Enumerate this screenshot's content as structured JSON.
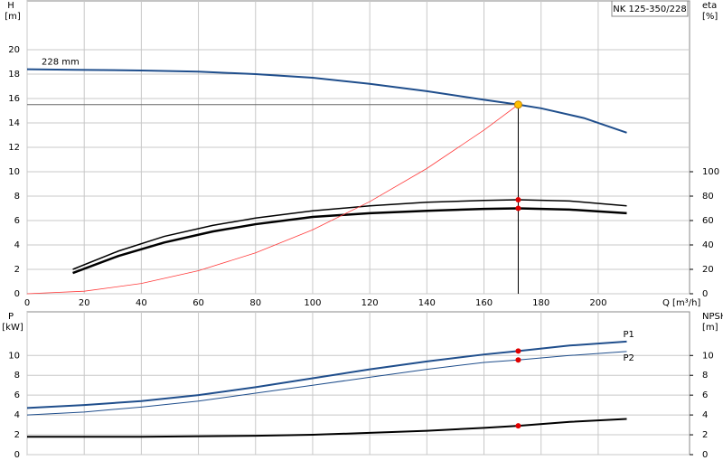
{
  "chart_data": [
    {
      "type": "line",
      "title": "NK 125-350/228",
      "ylabel": [
        "H",
        "[m]"
      ],
      "y2label": [
        "eta",
        "[%]"
      ],
      "xlabel": "Q [m³/h]",
      "xlim": [
        0,
        232
      ],
      "xticks": [
        0,
        20,
        40,
        60,
        80,
        100,
        120,
        140,
        160,
        180,
        200
      ],
      "ylim": [
        0,
        24
      ],
      "yticks": [
        0,
        2,
        4,
        6,
        8,
        10,
        12,
        14,
        16,
        18,
        20
      ],
      "y2lim": [
        0,
        240
      ],
      "y2ticks": [
        0,
        20,
        40,
        60,
        80,
        100
      ],
      "grid": true,
      "xtick_labels": true,
      "series": [
        {
          "name": "228 mm",
          "color": "#1f4e8c",
          "width": 2,
          "label_at": "start",
          "x": [
            0,
            17,
            40,
            60,
            80,
            100,
            120,
            140,
            160,
            172,
            180,
            195,
            210
          ],
          "values": [
            18.4,
            18.35,
            18.3,
            18.2,
            18.0,
            17.7,
            17.2,
            16.6,
            15.9,
            15.5,
            15.2,
            14.4,
            13.2
          ]
        },
        {
          "color": "#000000",
          "width": 1.5,
          "axis": "y2",
          "x": [
            16,
            32,
            48,
            65,
            80,
            100,
            120,
            140,
            160,
            172,
            190,
            210
          ],
          "values": [
            20,
            35,
            47,
            56,
            62,
            68,
            72,
            75,
            76.5,
            77,
            76,
            72
          ]
        },
        {
          "color": "#000000",
          "width": 2.5,
          "axis": "y2",
          "x": [
            16,
            32,
            48,
            65,
            80,
            100,
            120,
            140,
            160,
            172,
            190,
            210
          ],
          "values": [
            17,
            31,
            42,
            51,
            57,
            63,
            66,
            68,
            69.5,
            70,
            69,
            66
          ]
        },
        {
          "color": "#ff3b3b",
          "width": 0.8,
          "x": [
            0,
            20,
            40,
            60,
            80,
            100,
            120,
            140,
            160,
            172
          ],
          "values": [
            0,
            0.21,
            0.84,
            1.89,
            3.35,
            5.24,
            7.55,
            10.27,
            13.41,
            15.5
          ]
        }
      ],
      "points": [
        {
          "x": 172,
          "y": 15.5,
          "color": "#ffc000",
          "guides": true
        },
        {
          "x": 172,
          "y": 77,
          "color": "#e00000",
          "axis": "y2"
        },
        {
          "x": 172,
          "y": 70,
          "color": "#e00000",
          "axis": "y2"
        }
      ]
    },
    {
      "type": "line",
      "ylabel": [
        "P",
        "[kW]"
      ],
      "y2label": [
        "NPSH",
        "[m]"
      ],
      "xlim": [
        0,
        232
      ],
      "xticks": [
        0,
        20,
        40,
        60,
        80,
        100,
        120,
        140,
        160,
        180,
        200
      ],
      "ylim": [
        0,
        14.4
      ],
      "yticks": [
        0,
        2,
        4,
        6,
        8,
        10
      ],
      "y2lim": [
        0,
        14.4
      ],
      "y2ticks": [
        0,
        2,
        4,
        6,
        8,
        10
      ],
      "grid": true,
      "xtick_labels": false,
      "series": [
        {
          "name": "P1",
          "color": "#1f4e8c",
          "width": 2,
          "label_at": "end",
          "x": [
            0,
            20,
            40,
            60,
            80,
            100,
            120,
            140,
            160,
            172,
            190,
            210
          ],
          "values": [
            4.7,
            5.0,
            5.4,
            6.0,
            6.8,
            7.7,
            8.6,
            9.4,
            10.1,
            10.45,
            11.0,
            11.4
          ]
        },
        {
          "name": "P2",
          "color": "#1f4e8c",
          "width": 1,
          "label_at": "end",
          "x": [
            0,
            20,
            40,
            60,
            80,
            100,
            120,
            140,
            160,
            172,
            190,
            210
          ],
          "values": [
            4.0,
            4.3,
            4.8,
            5.4,
            6.2,
            7.0,
            7.8,
            8.6,
            9.3,
            9.55,
            10.0,
            10.4
          ]
        },
        {
          "color": "#000000",
          "width": 2,
          "axis": "y2",
          "x": [
            0,
            40,
            80,
            100,
            120,
            140,
            160,
            172,
            190,
            210
          ],
          "values": [
            1.8,
            1.8,
            1.9,
            2.0,
            2.2,
            2.4,
            2.7,
            2.9,
            3.3,
            3.6
          ]
        }
      ],
      "points": [
        {
          "x": 172,
          "y": 10.45,
          "color": "#e00000"
        },
        {
          "x": 172,
          "y": 9.55,
          "color": "#e00000"
        },
        {
          "x": 172,
          "y": 2.9,
          "color": "#e00000",
          "axis": "y2"
        }
      ]
    }
  ]
}
